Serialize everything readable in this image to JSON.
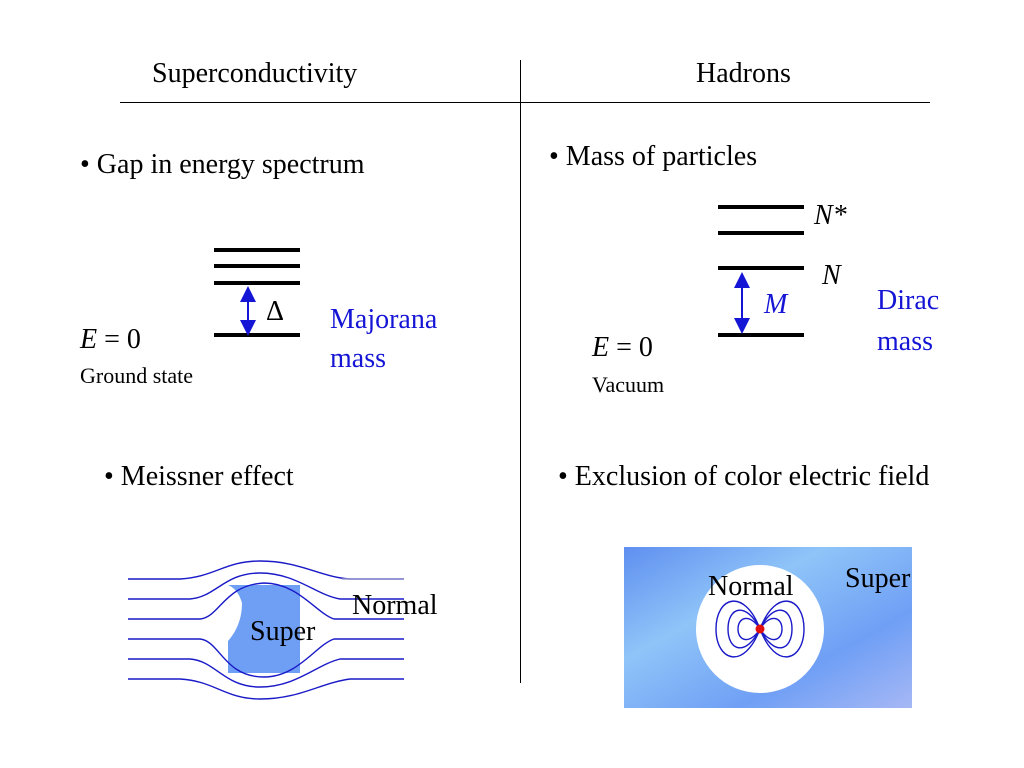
{
  "header": {
    "left_title": "Superconductivity",
    "right_title": "Hadrons"
  },
  "left": {
    "bullet1": "• Gap in energy spectrum",
    "energy_var": "E",
    "energy_eq": " = 0",
    "ground_label": "Ground state",
    "gap_symbol": "Δ",
    "mass_line1": "Majorana",
    "mass_line2": "mass",
    "bullet2": "•  Meissner effect",
    "normal_label": "Normal",
    "super_label": "Super"
  },
  "right": {
    "bullet1": "• Mass of particles",
    "nstar_label": "N*",
    "n_label": "N",
    "m_label": "M",
    "mass_line1": "Dirac",
    "mass_line2": "mass",
    "energy_var": "E",
    "energy_eq": " = 0",
    "vacuum_label": "Vacuum",
    "bullet2": "• Exclusion of color electric field",
    "normal_label": "Normal",
    "super_label": "Super"
  },
  "colors": {
    "accent_blue": "#1515d6",
    "field_line": "#1a1ac8",
    "super_fill": "#6f9ff5",
    "charge_dot": "#e01010"
  }
}
